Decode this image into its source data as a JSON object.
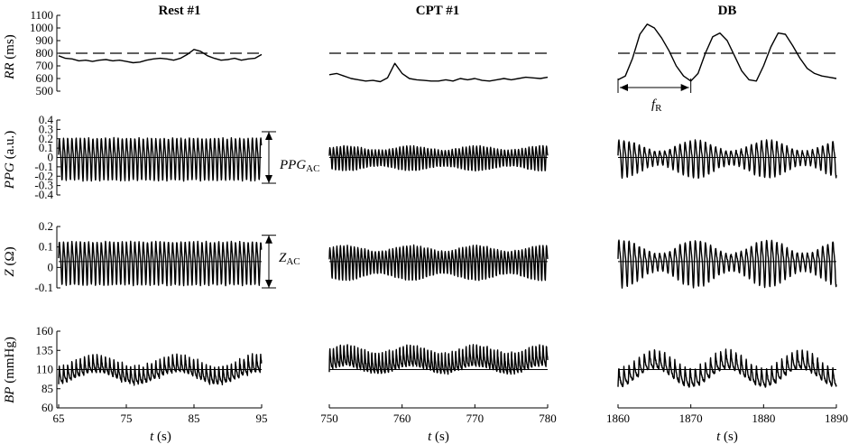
{
  "chart_data": [
    {
      "type": "line",
      "row": "RR",
      "ylabel_italic": "RR",
      "ylabel_unit": " (ms)",
      "yticks": [
        "1100",
        "1000",
        "900",
        "800",
        "700",
        "600",
        "500"
      ],
      "ylim": [
        500,
        1100
      ],
      "reference_line": 800,
      "series": [
        {
          "column": "rest",
          "x": [
            65,
            66,
            67,
            68,
            69,
            70,
            71,
            72,
            73,
            74,
            75,
            76,
            77,
            78,
            79,
            80,
            81,
            82,
            83,
            84,
            85,
            86,
            87,
            88,
            89,
            90,
            91,
            92,
            93,
            94,
            95
          ],
          "values": [
            780,
            760,
            755,
            740,
            745,
            735,
            745,
            750,
            740,
            745,
            735,
            725,
            730,
            745,
            755,
            760,
            755,
            745,
            760,
            790,
            830,
            815,
            780,
            760,
            745,
            750,
            760,
            745,
            755,
            760,
            790
          ]
        },
        {
          "column": "cpt",
          "x": [
            750,
            751,
            752,
            753,
            754,
            755,
            756,
            757,
            758,
            759,
            760,
            761,
            762,
            763,
            764,
            765,
            766,
            767,
            768,
            769,
            770,
            771,
            772,
            773,
            774,
            775,
            776,
            777,
            778,
            779,
            780
          ],
          "values": [
            630,
            640,
            620,
            600,
            590,
            580,
            585,
            575,
            605,
            720,
            640,
            600,
            590,
            585,
            580,
            580,
            590,
            580,
            600,
            590,
            600,
            585,
            580,
            590,
            600,
            590,
            600,
            610,
            605,
            600,
            610
          ]
        },
        {
          "column": "db",
          "x": [
            1860,
            1861,
            1862,
            1863,
            1864,
            1865,
            1866,
            1867,
            1868,
            1869,
            1870,
            1871,
            1872,
            1873,
            1874,
            1875,
            1876,
            1877,
            1878,
            1879,
            1880,
            1881,
            1882,
            1883,
            1884,
            1885,
            1886,
            1887,
            1888,
            1889,
            1890
          ],
          "values": [
            590,
            620,
            760,
            950,
            1030,
            1000,
            920,
            820,
            700,
            620,
            580,
            640,
            800,
            930,
            960,
            900,
            780,
            660,
            590,
            580,
            700,
            850,
            960,
            950,
            860,
            760,
            680,
            640,
            620,
            610,
            600
          ]
        }
      ],
      "annotation": {
        "text": "f",
        "subscript": "R",
        "span": [
          1860,
          1870
        ]
      }
    },
    {
      "type": "line",
      "row": "PPG",
      "ylabel_italic": "PPG",
      "ylabel_unit": " (a.u.)",
      "yticks": [
        "0.4",
        "0.3",
        "0.2",
        "0.1",
        "0",
        "-0.1",
        "-0.2",
        "-0.3",
        "-0.4"
      ],
      "ylim": [
        -0.4,
        0.4
      ],
      "baseline": 0,
      "beat_period_s": [
        0.62,
        0.48,
        0.7
      ],
      "amplitude": [
        0.22,
        0.12,
        0.18
      ],
      "annotation": {
        "text": "PPG",
        "subscript": "AC"
      }
    },
    {
      "type": "line",
      "row": "Z",
      "ylabel_italic": "Z",
      "ylabel_unit": " (Ω)",
      "yticks": [
        "0.2",
        "0.1",
        "0",
        "-0.1"
      ],
      "ylim": [
        -0.15,
        0.2
      ],
      "baseline": 0,
      "beat_period_s": [
        0.62,
        0.48,
        0.7
      ],
      "amplitude": [
        0.12,
        0.09,
        0.12
      ],
      "annotation": {
        "text": "Z",
        "subscript": "AC"
      }
    },
    {
      "type": "line",
      "row": "BP",
      "ylabel_italic": "BP",
      "ylabel_unit": " (mmHg)",
      "yticks": [
        "160",
        "135",
        "110",
        "85",
        "60"
      ],
      "ylim": [
        60,
        160
      ],
      "reference_line": 110,
      "beat_period_s": [
        0.62,
        0.48,
        0.7
      ],
      "systolic_mean": [
        123,
        140,
        125
      ],
      "diastolic_mean": [
        98,
        108,
        98
      ]
    }
  ],
  "columns": [
    {
      "title": "Rest #1",
      "xlim": [
        65,
        95
      ],
      "xticks": [
        "65",
        "75",
        "85",
        "95"
      ]
    },
    {
      "title": "CPT #1",
      "xlim": [
        750,
        780
      ],
      "xticks": [
        "750",
        "760",
        "770",
        "780"
      ]
    },
    {
      "title": "DB",
      "xlim": [
        1860,
        1890
      ],
      "xticks": [
        "1860",
        "1870",
        "1880",
        "1890"
      ]
    }
  ],
  "xlabel_italic": "t",
  "xlabel_unit": " (s)"
}
